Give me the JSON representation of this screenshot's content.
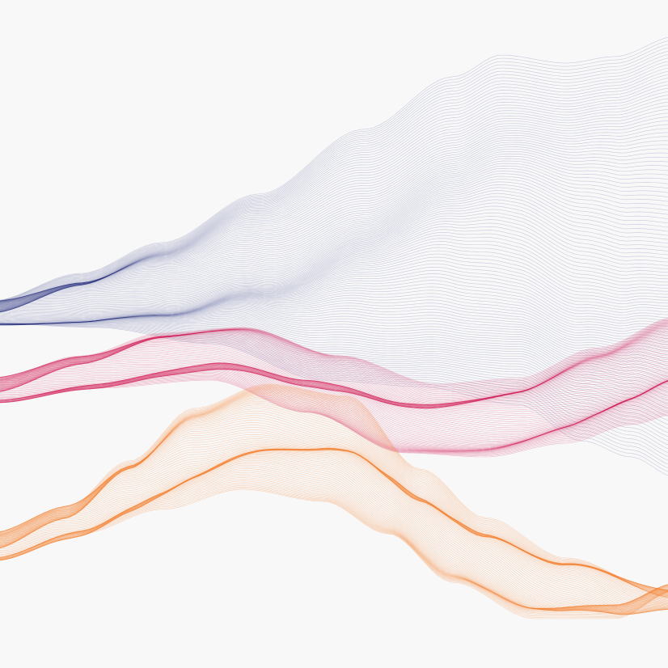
{
  "artwork": {
    "background_color": "#f8f8f8",
    "ribbons": [
      {
        "name": "navy-ribbon",
        "color": "#1f2a7a"
      },
      {
        "name": "crimson-ribbon",
        "color": "#d1124f"
      },
      {
        "name": "orange-ribbon",
        "color": "#f47a24"
      }
    ]
  }
}
